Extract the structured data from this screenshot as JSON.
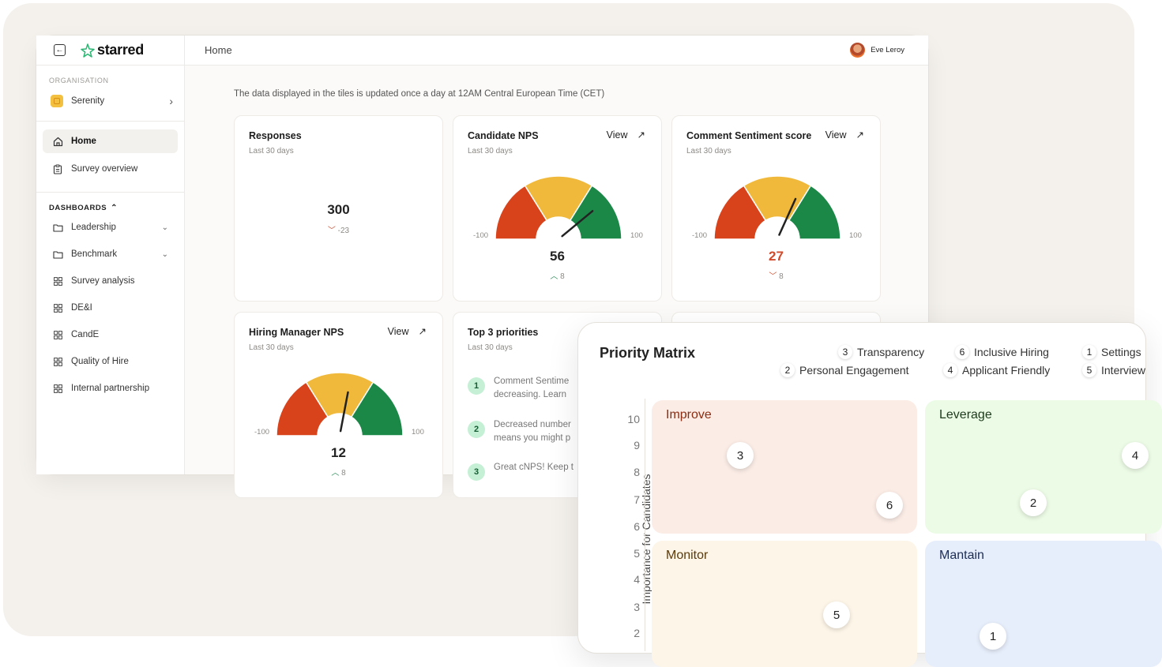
{
  "sidebar": {
    "brand": "starred",
    "org_label": "ORGANISATION",
    "org_name": "Serenity",
    "nav": [
      {
        "label": "Home",
        "icon": "home-icon"
      },
      {
        "label": "Survey overview",
        "icon": "clipboard-icon"
      }
    ],
    "dashboards_label": "DASHBOARDS",
    "dashboards": [
      {
        "label": "Leadership",
        "icon": "folder-icon"
      },
      {
        "label": "Benchmark",
        "icon": "folder-icon"
      },
      {
        "label": "Survey analysis",
        "icon": "grid-icon"
      },
      {
        "label": "DE&I",
        "icon": "grid-icon"
      },
      {
        "label": "CandE",
        "icon": "grid-icon"
      },
      {
        "label": "Quality of Hire",
        "icon": "grid-icon"
      },
      {
        "label": "Internal partnership",
        "icon": "grid-icon"
      }
    ]
  },
  "header": {
    "title": "Home",
    "user_name": "Eve Leroy"
  },
  "notice": "The data displayed in the tiles is updated once a day at 12AM Central European Time (CET)",
  "tiles": {
    "responses": {
      "title": "Responses",
      "period": "Last 30 days",
      "value": "300",
      "delta": "-23"
    },
    "candidate_nps": {
      "title": "Candidate NPS",
      "period": "Last 30 days",
      "view": "View",
      "value": "56",
      "delta": "8",
      "score": 56,
      "min": "-100",
      "max": "100"
    },
    "comment_sentiment": {
      "title": "Comment Sentiment score",
      "period": "Last 30 days",
      "view": "View",
      "value": "27",
      "delta": "8",
      "score": 27,
      "min": "-100",
      "max": "100"
    },
    "hiring_manager_nps": {
      "title": "Hiring Manager NPS",
      "period": "Last 30 days",
      "view": "View",
      "value": "12",
      "delta": "8",
      "score": 12,
      "min": "-100",
      "max": "100"
    },
    "top_priorities": {
      "title": "Top 3 priorities",
      "period": "Last 30 days",
      "items": [
        {
          "num": "1",
          "line1": "Comment Sentime",
          "line2": "decreasing. Learn"
        },
        {
          "num": "2",
          "line1": "Decreased number",
          "line2": "means you might p"
        },
        {
          "num": "3",
          "line1": "Great cNPS! Keep t",
          "line2": ""
        }
      ]
    }
  },
  "matrix": {
    "title": "Priority Matrix",
    "legend": [
      {
        "num": "3",
        "label": "Transparency"
      },
      {
        "num": "6",
        "label": "Inclusive Hiring"
      },
      {
        "num": "1",
        "label": "Settings"
      },
      {
        "num": "2",
        "label": "Personal Engagement"
      },
      {
        "num": "4",
        "label": "Applicant Friendly"
      },
      {
        "num": "5",
        "label": "Interview"
      }
    ],
    "y_axis_title": "Importance for Candidates",
    "y_ticks": [
      "10",
      "9",
      "8",
      "7",
      "6",
      "5",
      "4",
      "3",
      "2"
    ],
    "quadrants": {
      "improve": "Improve",
      "leverage": "Leverage",
      "monitor": "Monitor",
      "maintain": "Mantain"
    },
    "bubbles": [
      "3",
      "6",
      "2",
      "4",
      "5",
      "1"
    ]
  }
}
